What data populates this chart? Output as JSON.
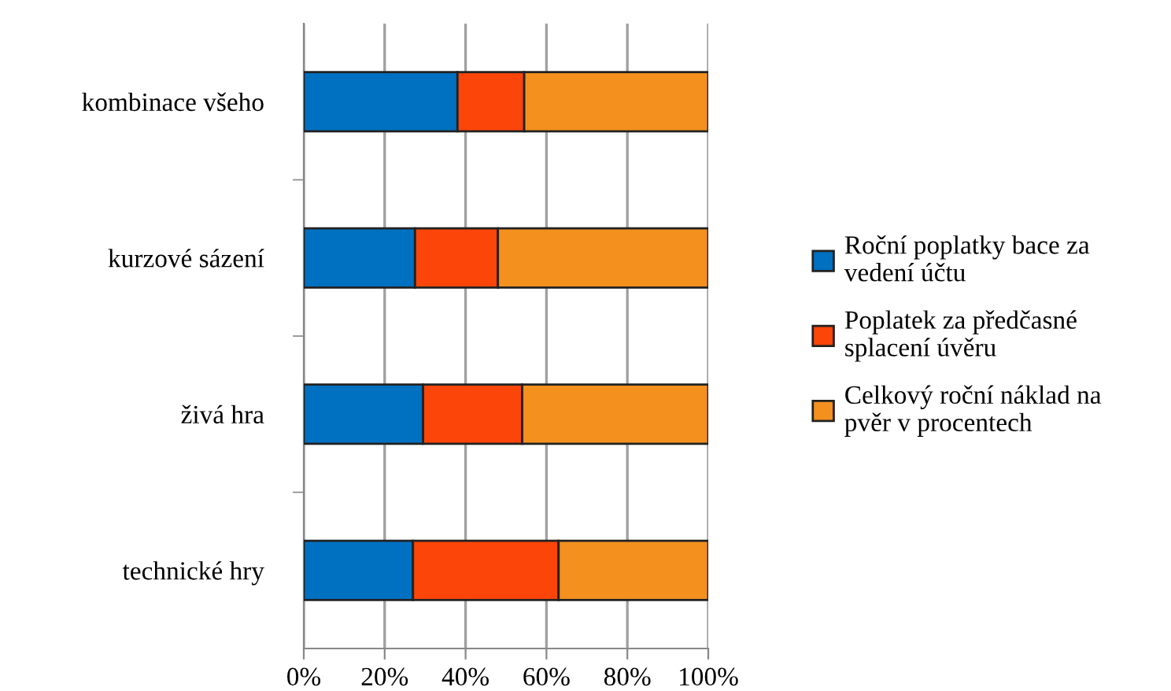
{
  "chart_data": {
    "type": "bar",
    "orientation": "horizontal",
    "stacked": true,
    "categories": [
      "kombinace všeho",
      "kurzové sázení",
      "živá hra",
      "technické hry"
    ],
    "series": [
      {
        "name": "Roční poplatky bace za\nvedení účtu",
        "color": "#0070c0",
        "values": [
          38,
          27.5,
          29.5,
          27
        ]
      },
      {
        "name": "Poplatek za předčasné\nsplacení úvěru",
        "color": "#fc4509",
        "values": [
          16.5,
          20.5,
          24.5,
          36
        ]
      },
      {
        "name": "Celkový roční náklad na\npvěr v procentech",
        "color": "#f3901e",
        "values": [
          45.5,
          52,
          46,
          37
        ]
      }
    ],
    "xlim": [
      0,
      100
    ],
    "xticks": [
      {
        "value": 0,
        "label": "0%"
      },
      {
        "value": 20,
        "label": "20%"
      },
      {
        "value": 40,
        "label": "40%"
      },
      {
        "value": 60,
        "label": "60%"
      },
      {
        "value": 80,
        "label": "80%"
      },
      {
        "value": 100,
        "label": "100%"
      }
    ],
    "grid": "x",
    "legend": "right"
  }
}
